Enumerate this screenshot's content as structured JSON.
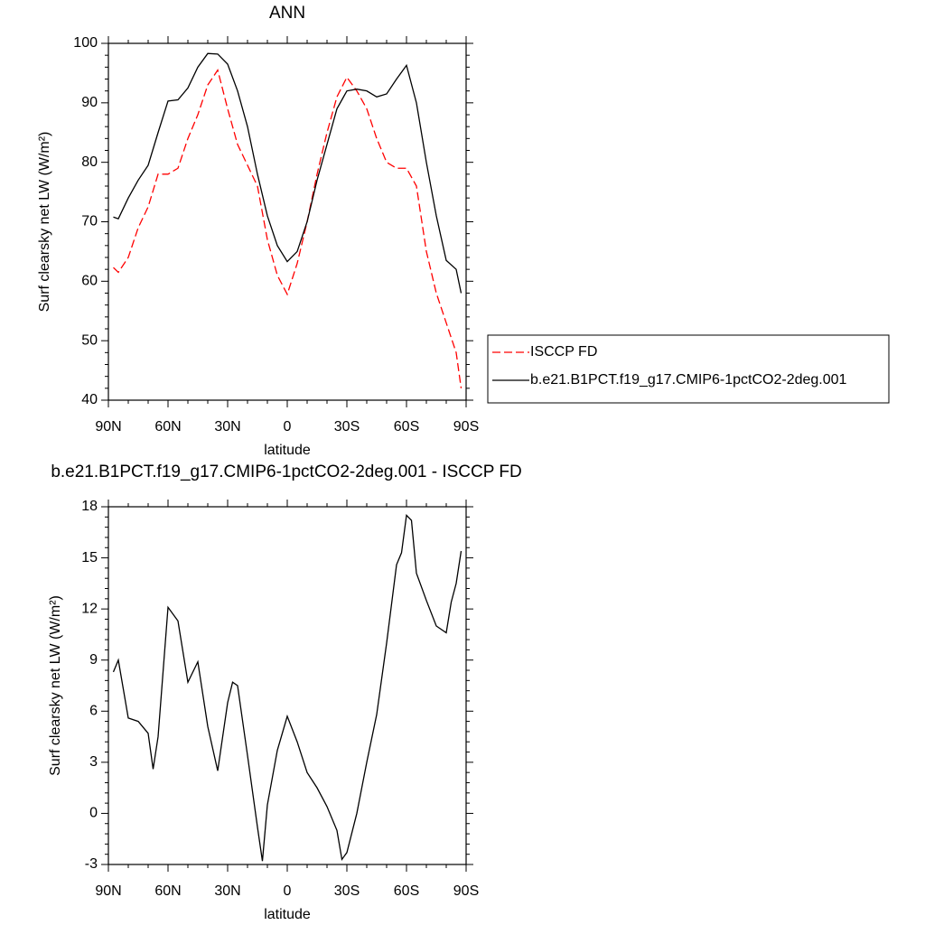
{
  "chart_data": [
    {
      "type": "line",
      "title": "ANN",
      "xlabel": "latitude",
      "ylabel": "Surf clearsky net LW (W/m²)",
      "x": [
        87.5,
        85,
        80,
        75,
        70,
        65,
        60,
        55,
        50,
        45,
        40,
        35,
        30,
        25,
        20,
        15,
        10,
        5,
        0,
        -5,
        -10,
        -15,
        -20,
        -25,
        -30,
        -35,
        -40,
        -45,
        -50,
        -55,
        -60,
        -65,
        -70,
        -75,
        -80,
        -85,
        -87.5
      ],
      "series": [
        {
          "name": "ISCCP FD",
          "color": "#ff0000",
          "line_style": "dashed",
          "values": [
            62.3,
            61.5,
            64,
            69,
            72.5,
            78,
            78,
            79,
            84,
            88,
            93,
            95.5,
            89,
            83,
            79.5,
            76,
            67,
            61,
            57.8,
            63,
            70,
            78,
            85,
            91,
            94.3,
            92,
            89,
            84,
            80,
            79,
            79,
            76,
            65,
            58,
            53,
            48,
            42
          ]
        },
        {
          "name": "b.e21.B1PCT.f19_g17.CMIP6-1pctCO2-2deg.001",
          "color": "#000000",
          "line_style": "solid",
          "values": [
            70.8,
            70.5,
            74,
            77,
            79.5,
            85,
            90.3,
            90.5,
            92.5,
            96,
            98.3,
            98.2,
            96.5,
            92,
            86,
            78,
            71,
            66,
            63.3,
            65,
            70,
            77,
            83,
            89,
            92,
            92.3,
            92,
            91,
            91.5,
            94,
            96.3,
            90,
            80,
            71,
            63.5,
            62,
            58
          ]
        }
      ],
      "xlim": [
        90,
        -90
      ],
      "xticks": [
        {
          "value": 90,
          "label": "90N"
        },
        {
          "value": 60,
          "label": "60N"
        },
        {
          "value": 30,
          "label": "30N"
        },
        0,
        {
          "value": -30,
          "label": "30S"
        },
        {
          "value": -60,
          "label": "60S"
        },
        {
          "value": -90,
          "label": "90S"
        }
      ],
      "ylim": [
        40,
        100
      ],
      "yticks": [
        40,
        50,
        60,
        70,
        80,
        90,
        100
      ],
      "legend": "right"
    },
    {
      "type": "line",
      "title": "b.e21.B1PCT.f19_g17.CMIP6-1pctCO2-2deg.001 - ISCCP FD",
      "xlabel": "latitude",
      "ylabel": "Surf clearsky net LW (W/m²)",
      "x": [
        87.5,
        85,
        80,
        75,
        70,
        67.5,
        65,
        60,
        55,
        50,
        45,
        40,
        35,
        30,
        27.5,
        25,
        20,
        15,
        12.5,
        10,
        5,
        0,
        -5,
        -10,
        -15,
        -20,
        -25,
        -27.5,
        -30,
        -35,
        -40,
        -45,
        -50,
        -55,
        -57.5,
        -60,
        -62.5,
        -65,
        -70,
        -75,
        -80,
        -82.5,
        -85,
        -87.5
      ],
      "series": [
        {
          "color": "#000000",
          "line_style": "solid",
          "values": [
            8.3,
            9,
            5.6,
            5.4,
            4.7,
            2.6,
            4.5,
            12.1,
            11.3,
            7.7,
            8.9,
            5.1,
            2.5,
            6.5,
            7.7,
            7.5,
            3.4,
            -0.8,
            -2.8,
            0.5,
            3.7,
            5.7,
            4.2,
            2.4,
            1.5,
            0.4,
            -1,
            -2.7,
            -2.3,
            0,
            3,
            5.8,
            10,
            14.6,
            15.3,
            17.5,
            17.2,
            14.1,
            12.5,
            11,
            10.6,
            12.4,
            13.5,
            15.4
          ]
        }
      ],
      "xlim": [
        90,
        -90
      ],
      "xticks": [
        {
          "value": 90,
          "label": "90N"
        },
        {
          "value": 60,
          "label": "60N"
        },
        {
          "value": 30,
          "label": "30N"
        },
        0,
        {
          "value": -30,
          "label": "30S"
        },
        {
          "value": -60,
          "label": "60S"
        },
        {
          "value": -90,
          "label": "90S"
        }
      ],
      "ylim": [
        -3,
        18
      ],
      "yticks": [
        -3,
        0,
        3,
        6,
        9,
        12,
        15,
        18
      ]
    }
  ]
}
